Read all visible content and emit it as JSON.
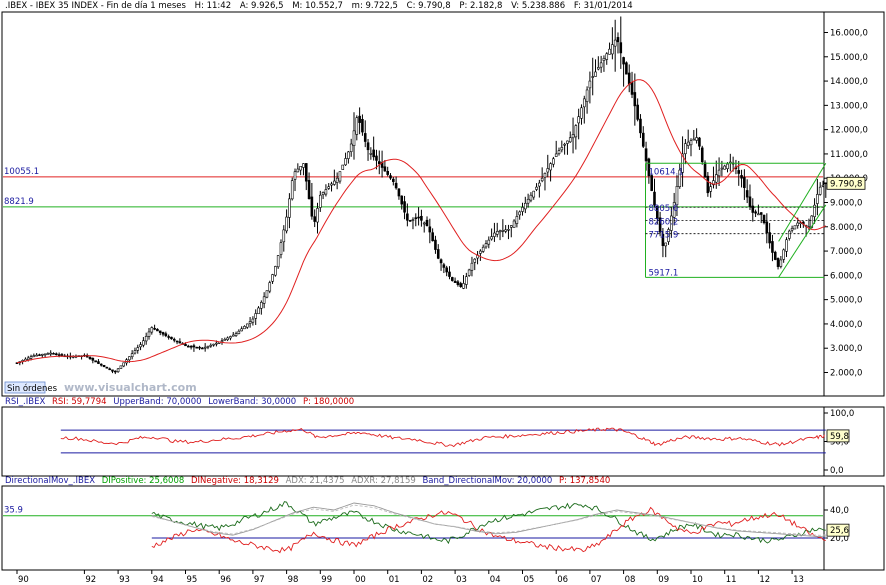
{
  "header": {
    "symbol": ".IBEX - IBEX 35 INDEX - Fin de día 1 meses",
    "h": "H: 11:42",
    "a": "A: 9.926,5",
    "m": "M: 10.552,7",
    "mn": "m: 9.722,5",
    "c": "C: 9.790,8",
    "p": "P: 2.182,8",
    "v": "V: 5.238.886",
    "f": "F: 31/01/2014"
  },
  "sin_ordenes": "Sin órdenes",
  "watermark": "www.visualchart.com",
  "rsi_header": {
    "name": "RSI_.IBEX",
    "rsi": "RSI: 59,7794",
    "upper": "UpperBand: 70,0000",
    "lower": "LowerBand: 30,0000",
    "p": "P: 180,0000"
  },
  "dm_header": {
    "name": "DirectionalMov_.IBEX",
    "dip": "DIPositive: 25,6008",
    "din": "DINegative: 18,3129",
    "adx": "ADX: 21,4375",
    "adxr": "ADXR: 27,8159",
    "band": "Band_DirectionalMov: 20,0000",
    "p": "P: 137,8540"
  },
  "levels": {
    "red_line": "10055.1",
    "green_line": "8821.9",
    "fib_top": "10614.1",
    "fib_1": "8805.6",
    "fib_2": "8260.2",
    "fib_3": "7715.9",
    "fib_bottom": "5917.1",
    "last_price": "9.790,8",
    "rsi_last": "59,8",
    "dm_last": "25,6",
    "dm_band_label": "35.9"
  },
  "colors": {
    "price": "#000000",
    "ma": "#e02020",
    "rsi": "#e02020",
    "band": "#1a1aa0",
    "green": "#20b020",
    "dip": "#1a6a1a",
    "din": "#e02020",
    "adx": "#999999"
  },
  "chart_data": [
    {
      "type": "candlestick",
      "title": ".IBEX - IBEX 35 INDEX - Fin de día 1 meses",
      "x_tick_labels": [
        "90",
        "92",
        "93",
        "94",
        "95",
        "96",
        "97",
        "98",
        "99",
        "00",
        "01",
        "02",
        "03",
        "04",
        "05",
        "06",
        "07",
        "08",
        "09",
        "10",
        "11",
        "12",
        "13"
      ],
      "y_tick_labels": [
        "2.000,0",
        "3.000,0",
        "4.000,0",
        "5.000,0",
        "6.000,0",
        "7.000,0",
        "8.000,0",
        "9.000,0",
        "10.000,0",
        "11.000,0",
        "12.000,0",
        "13.000,0",
        "14.000,0",
        "15.000,0",
        "16.000,0"
      ],
      "ylim": [
        1100,
        16800
      ],
      "close_path": [
        [
          1990.0,
          2400
        ],
        [
          1990.5,
          2700
        ],
        [
          1991.0,
          2800
        ],
        [
          1991.5,
          2650
        ],
        [
          1992.0,
          2700
        ],
        [
          1992.5,
          2300
        ],
        [
          1992.9,
          2000
        ],
        [
          1993.3,
          2600
        ],
        [
          1993.7,
          3200
        ],
        [
          1994.0,
          3850
        ],
        [
          1994.3,
          3600
        ],
        [
          1994.7,
          3300
        ],
        [
          1995.0,
          3100
        ],
        [
          1995.5,
          3000
        ],
        [
          1996.0,
          3250
        ],
        [
          1996.5,
          3600
        ],
        [
          1997.0,
          4200
        ],
        [
          1997.4,
          5300
        ],
        [
          1997.7,
          6500
        ],
        [
          1998.0,
          8400
        ],
        [
          1998.2,
          10200
        ],
        [
          1998.5,
          10600
        ],
        [
          1998.8,
          8000
        ],
        [
          1999.0,
          9300
        ],
        [
          1999.5,
          10000
        ],
        [
          1999.9,
          11300
        ],
        [
          2000.1,
          12600
        ],
        [
          2000.4,
          11200
        ],
        [
          2000.8,
          10500
        ],
        [
          2001.2,
          9800
        ],
        [
          2001.6,
          8200
        ],
        [
          2001.9,
          8400
        ],
        [
          2002.2,
          8000
        ],
        [
          2002.5,
          6700
        ],
        [
          2002.9,
          5800
        ],
        [
          2003.2,
          5500
        ],
        [
          2003.5,
          6500
        ],
        [
          2003.8,
          7100
        ],
        [
          2004.2,
          7800
        ],
        [
          2004.6,
          7900
        ],
        [
          2005.0,
          8800
        ],
        [
          2005.5,
          9800
        ],
        [
          2006.0,
          11000
        ],
        [
          2006.5,
          11800
        ],
        [
          2007.0,
          14000
        ],
        [
          2007.4,
          14900
        ],
        [
          2007.8,
          15800
        ],
        [
          2008.0,
          14700
        ],
        [
          2008.3,
          13200
        ],
        [
          2008.6,
          11200
        ],
        [
          2008.9,
          9000
        ],
        [
          2009.2,
          7000
        ],
        [
          2009.5,
          9000
        ],
        [
          2009.8,
          11400
        ],
        [
          2010.2,
          11700
        ],
        [
          2010.5,
          9400
        ],
        [
          2010.8,
          10300
        ],
        [
          2011.2,
          10700
        ],
        [
          2011.5,
          10000
        ],
        [
          2011.8,
          8600
        ],
        [
          2012.1,
          8500
        ],
        [
          2012.4,
          7000
        ],
        [
          2012.6,
          6300
        ],
        [
          2012.9,
          7800
        ],
        [
          2013.2,
          8200
        ],
        [
          2013.5,
          8000
        ],
        [
          2013.8,
          9600
        ],
        [
          2014.0,
          9790
        ]
      ]
    },
    {
      "type": "line",
      "title": "RSI_.IBEX",
      "ylim": [
        0,
        100
      ],
      "y_tick_labels": [
        "100,0",
        "50,0",
        "0,0"
      ],
      "upper_band": 70,
      "lower_band": 30,
      "series": [
        {
          "name": "RSI",
          "x": [
            1990.0,
            1990.6,
            1991.3,
            1991.9,
            1992.5,
            1993.1,
            1993.6,
            1994.1,
            1994.7,
            1995.3,
            1995.9,
            1996.5,
            1997.0,
            1997.5,
            1998.0,
            1998.5,
            1998.9,
            1999.3,
            1999.8,
            2000.2,
            2000.7,
            2001.2,
            2001.8,
            2002.4,
            2002.9,
            2003.4,
            2003.9,
            2004.5,
            2005.0,
            2005.6,
            2006.1,
            2006.6,
            2007.1,
            2007.5,
            2007.9,
            2008.3,
            2008.7,
            2009.0,
            2009.4,
            2009.9,
            2010.4,
            2010.9,
            2011.4,
            2011.9,
            2012.4,
            2012.7,
            2013.2,
            2013.7,
            2014.0
          ],
          "values": [
            66,
            62,
            57,
            55,
            48,
            47,
            56,
            58,
            50,
            49,
            53,
            56,
            60,
            64,
            69,
            71,
            57,
            60,
            63,
            66,
            61,
            56,
            54,
            47,
            43,
            50,
            57,
            59,
            61,
            64,
            66,
            68,
            70,
            72,
            70,
            62,
            52,
            44,
            52,
            58,
            56,
            54,
            56,
            51,
            46,
            45,
            52,
            57,
            60
          ]
        }
      ]
    },
    {
      "type": "line",
      "title": "DirectionalMov_.IBEX",
      "ylim": [
        0,
        50
      ],
      "y_tick_labels": [
        "40,0",
        "20,0"
      ],
      "band": 20,
      "series": [
        {
          "name": "DIPositive",
          "x": [
            1994.0,
            1994.4,
            1994.8,
            1995.2,
            1995.6,
            1996.0,
            1996.4,
            1996.8,
            1997.2,
            1997.6,
            1998.0,
            1998.4,
            1998.8,
            1999.2,
            1999.6,
            2000.0,
            2000.4,
            2000.8,
            2001.2,
            2001.6,
            2002.0,
            2002.4,
            2002.8,
            2003.2,
            2003.6,
            2004.0,
            2004.4,
            2004.8,
            2005.2,
            2005.6,
            2006.0,
            2006.4,
            2006.8,
            2007.2,
            2007.6,
            2008.0,
            2008.4,
            2008.8,
            2009.2,
            2009.6,
            2010.0,
            2010.4,
            2010.8,
            2011.2,
            2011.6,
            2012.0,
            2012.4,
            2012.8,
            2013.2,
            2013.6,
            2014.0
          ],
          "values": [
            38,
            34,
            32,
            30,
            28,
            27,
            30,
            34,
            37,
            41,
            45,
            38,
            30,
            33,
            36,
            38,
            34,
            30,
            26,
            24,
            22,
            19,
            18,
            22,
            27,
            32,
            34,
            36,
            38,
            40,
            42,
            43,
            44,
            41,
            36,
            30,
            24,
            19,
            22,
            27,
            30,
            26,
            22,
            23,
            21,
            19,
            18,
            20,
            23,
            26,
            25.6
          ]
        },
        {
          "name": "DINegative",
          "x": [
            1994.0,
            1994.4,
            1994.8,
            1995.2,
            1995.6,
            1996.0,
            1996.4,
            1996.8,
            1997.2,
            1997.6,
            1998.0,
            1998.4,
            1998.8,
            1999.2,
            1999.6,
            2000.0,
            2000.4,
            2000.8,
            2001.2,
            2001.6,
            2002.0,
            2002.4,
            2002.8,
            2003.2,
            2003.6,
            2004.0,
            2004.4,
            2004.8,
            2005.2,
            2005.6,
            2006.0,
            2006.4,
            2006.8,
            2007.2,
            2007.6,
            2008.0,
            2008.4,
            2008.8,
            2009.2,
            2009.6,
            2010.0,
            2010.4,
            2010.8,
            2011.2,
            2011.6,
            2012.0,
            2012.4,
            2012.8,
            2013.2,
            2013.6,
            2014.0
          ],
          "values": [
            14,
            18,
            22,
            26,
            24,
            22,
            18,
            16,
            14,
            12,
            11,
            17,
            24,
            20,
            17,
            15,
            19,
            24,
            28,
            31,
            34,
            37,
            38,
            34,
            28,
            23,
            20,
            18,
            16,
            14,
            13,
            12,
            11,
            15,
            22,
            30,
            36,
            40,
            34,
            27,
            23,
            27,
            31,
            30,
            33,
            35,
            37,
            34,
            28,
            22,
            18.3
          ]
        },
        {
          "name": "ADX",
          "x": [
            1994.0,
            1994.6,
            1995.2,
            1995.8,
            1996.4,
            1997.0,
            1997.6,
            1998.2,
            1998.8,
            1999.4,
            2000.0,
            2000.6,
            2001.2,
            2001.8,
            2002.4,
            2003.0,
            2003.6,
            2004.2,
            2004.8,
            2005.4,
            2006.0,
            2006.6,
            2007.2,
            2007.8,
            2008.4,
            2009.0,
            2009.6,
            2010.2,
            2010.8,
            2011.4,
            2012.0,
            2012.6,
            2013.2,
            2013.8,
            2014.0
          ],
          "values": [
            36,
            32,
            28,
            24,
            22,
            26,
            32,
            38,
            42,
            40,
            45,
            43,
            38,
            34,
            30,
            28,
            25,
            23,
            24,
            27,
            30,
            33,
            37,
            40,
            38,
            36,
            33,
            30,
            27,
            25,
            24,
            23,
            22,
            21,
            21.4
          ]
        }
      ]
    }
  ]
}
